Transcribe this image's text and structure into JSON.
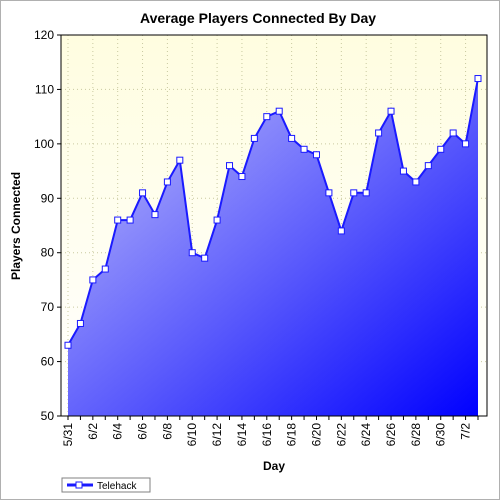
{
  "chart_data": {
    "type": "area",
    "title": "Average Players Connected By Day",
    "xlabel": "Day",
    "ylabel": "Players Connected",
    "ylim": [
      50,
      120
    ],
    "yticks": [
      50,
      60,
      70,
      80,
      90,
      100,
      110,
      120
    ],
    "grid": true,
    "legend": "bottom-left",
    "colors": {
      "plot_background_top": "#fffde0",
      "area_light": "#b8b8f8",
      "area_dark": "#0000ff",
      "line": "#1a1aff",
      "marker_fill": "#ffffff",
      "grid": "#c9c9a0"
    },
    "categories": [
      "5/31",
      "6/1",
      "6/2",
      "6/3",
      "6/4",
      "6/5",
      "6/6",
      "6/7",
      "6/8",
      "6/9",
      "6/10",
      "6/11",
      "6/12",
      "6/13",
      "6/14",
      "6/15",
      "6/16",
      "6/17",
      "6/18",
      "6/19",
      "6/20",
      "6/21",
      "6/22",
      "6/23",
      "6/24",
      "6/25",
      "6/26",
      "6/27",
      "6/28",
      "6/29",
      "6/30",
      "7/1",
      "7/2",
      "7/3"
    ],
    "tick_labels": [
      "5/31",
      "6/2",
      "6/4",
      "6/6",
      "6/8",
      "6/10",
      "6/12",
      "6/14",
      "6/16",
      "6/18",
      "6/20",
      "6/22",
      "6/24",
      "6/26",
      "6/28",
      "6/30",
      "7/2"
    ],
    "series": [
      {
        "name": "Telehack",
        "values": [
          63,
          67,
          75,
          77,
          86,
          86,
          91,
          87,
          93,
          97,
          80,
          79,
          86,
          96,
          94,
          101,
          105,
          106,
          101,
          99,
          98,
          91,
          84,
          91,
          91,
          102,
          106,
          95,
          93,
          96,
          99,
          102,
          100,
          112
        ]
      }
    ]
  }
}
